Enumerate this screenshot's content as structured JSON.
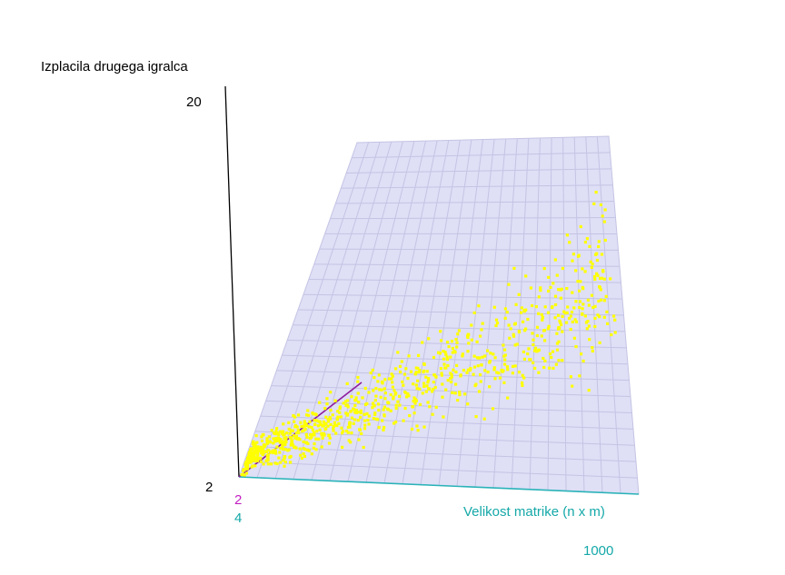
{
  "chart_data": {
    "type": "scatter",
    "title": "",
    "zlabel": "Izplacila drugega igralca",
    "xlabel": "Velikost matrike (n x m)",
    "z_ticks": [
      "20",
      "2"
    ],
    "x_ticks": [
      "4",
      "1000"
    ],
    "y_ticks": [
      "2"
    ],
    "zlim": [
      2,
      20
    ],
    "xlim": [
      4,
      1000
    ],
    "grid": true,
    "colors": {
      "points": "#ffff00",
      "plane": "#d9d9f5",
      "grid": "#c4c4e4",
      "z_axis": "#000000",
      "x_axis": "#2ab3b8",
      "y_axis": "#8e1c9c",
      "y_tick": "#c21fc2",
      "x_tick": "#15a8a8"
    },
    "point_count": 900,
    "trend": "payoff increases with matrix size, spread widening"
  }
}
